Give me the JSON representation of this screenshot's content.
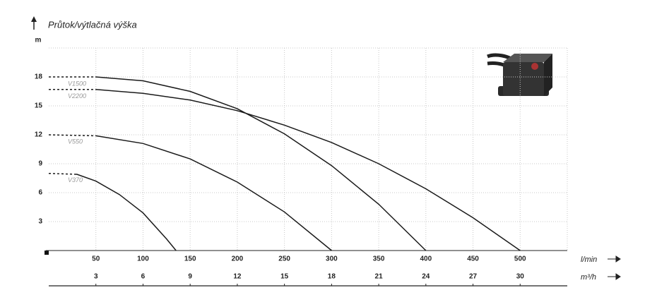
{
  "chart_data": {
    "type": "line",
    "title": "Průtok/výtlačná výška",
    "ylabel": "m",
    "xlabel": "l/min",
    "x2label": "m³/h",
    "xlim": [
      0,
      550
    ],
    "xticks": [
      50,
      100,
      150,
      200,
      250,
      300,
      350,
      400,
      450,
      500
    ],
    "x2lim": [
      0,
      33
    ],
    "x2ticks": [
      3,
      6,
      9,
      12,
      15,
      18,
      21,
      24,
      27,
      30
    ],
    "ylim": [
      0,
      21
    ],
    "yticks": [
      3,
      6,
      9,
      12,
      15,
      18
    ],
    "grid": true,
    "series": [
      {
        "name": "V1500",
        "color": "#1a1a1a",
        "x": [
          0,
          50,
          100,
          150,
          200,
          250,
          300,
          350,
          400
        ],
        "values": [
          18,
          18,
          17.6,
          16.5,
          14.7,
          12.1,
          8.8,
          4.8,
          0
        ]
      },
      {
        "name": "V2200",
        "color": "#1a1a1a",
        "x": [
          0,
          50,
          100,
          150,
          200,
          250,
          300,
          350,
          400,
          450,
          500
        ],
        "values": [
          16.7,
          16.7,
          16.3,
          15.6,
          14.5,
          13.0,
          11.2,
          9.0,
          6.4,
          3.4,
          0
        ]
      },
      {
        "name": "V550",
        "color": "#1a1a1a",
        "x": [
          0,
          50,
          100,
          150,
          200,
          250,
          300
        ],
        "values": [
          12,
          11.9,
          11.1,
          9.5,
          7.1,
          4.0,
          0
        ]
      },
      {
        "name": "V370",
        "color": "#1a1a1a",
        "x": [
          0,
          30,
          50,
          75,
          100,
          125,
          135
        ],
        "values": [
          8,
          7.9,
          7.2,
          5.8,
          3.9,
          1.2,
          0
        ]
      }
    ]
  }
}
